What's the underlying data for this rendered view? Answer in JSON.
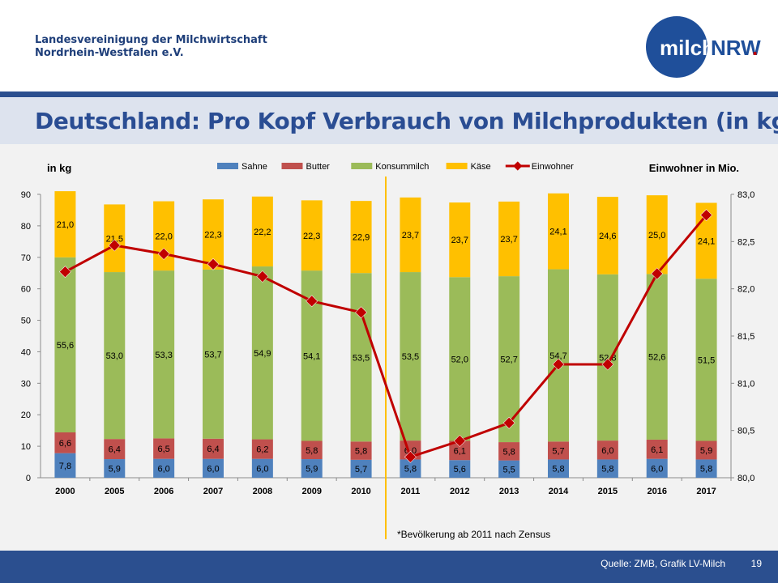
{
  "header": {
    "org_line1": "Landesvereinigung der Milchwirtschaft",
    "org_line2": "Nordrhein-Westfalen e.V.",
    "logo_left": "milch",
    "logo_right": "NRW",
    "logo_dot": "."
  },
  "slide": {
    "title": "Deutschland: Pro Kopf Verbrauch von Milchprodukten (in kg)",
    "footnote": "*Bevölkerung ab 2011 nach Zensus",
    "source": "Quelle: ZMB, Grafik LV-Milch",
    "page_number": "19"
  },
  "colors": {
    "sahne": "#4f81bd",
    "butter": "#c0504d",
    "konsummilch": "#9bbb59",
    "kaese": "#ffc000",
    "einwohner": "#c00000",
    "divider": "#ffc000",
    "brand": "#2b4f8f"
  },
  "chart_data": {
    "type": "bar",
    "stacked": true,
    "ylabel": "in kg",
    "y2label": "Einwohner in Mio.",
    "ylim": [
      0,
      90
    ],
    "y2lim": [
      80.0,
      83.0
    ],
    "yticks": [
      "0",
      "10",
      "20",
      "30",
      "40",
      "50",
      "60",
      "70",
      "80",
      "90"
    ],
    "y2ticks": [
      "80,0",
      "80,5",
      "81,0",
      "81,5",
      "82,0",
      "82,5",
      "83,0"
    ],
    "categories": [
      "2000",
      "2005",
      "2006",
      "2007",
      "2008",
      "2009",
      "2010",
      "2011",
      "2012",
      "2013",
      "2014",
      "2015",
      "2016",
      "2017"
    ],
    "series": [
      {
        "name": "Sahne",
        "values": [
          7.8,
          5.9,
          6.0,
          6.0,
          6.0,
          5.9,
          5.7,
          5.8,
          5.6,
          5.5,
          5.8,
          5.8,
          6.0,
          5.8
        ],
        "labels": [
          "7,8",
          "5,9",
          "6,0",
          "6,0",
          "6,0",
          "5,9",
          "5,7",
          "5,8",
          "5,6",
          "5,5",
          "5,8",
          "5,8",
          "6,0",
          "5,8"
        ]
      },
      {
        "name": "Butter",
        "values": [
          6.6,
          6.4,
          6.5,
          6.4,
          6.2,
          5.8,
          5.8,
          6.0,
          6.1,
          5.8,
          5.7,
          6.0,
          6.1,
          5.9
        ],
        "labels": [
          "6,6",
          "6,4",
          "6,5",
          "6,4",
          "6,2",
          "5,8",
          "5,8",
          "6,0",
          "6,1",
          "5,8",
          "5,7",
          "6,0",
          "6,1",
          "5,9"
        ]
      },
      {
        "name": "Konsummilch",
        "values": [
          55.6,
          53.0,
          53.3,
          53.7,
          54.9,
          54.1,
          53.5,
          53.5,
          52.0,
          52.7,
          54.7,
          52.8,
          52.6,
          51.5
        ],
        "labels": [
          "55,6",
          "53,0",
          "53,3",
          "53,7",
          "54,9",
          "54,1",
          "53,5",
          "53,5",
          "52,0",
          "52,7",
          "54,7",
          "52,8",
          "52,6",
          "51,5"
        ]
      },
      {
        "name": "Käse",
        "values": [
          21.0,
          21.5,
          22.0,
          22.3,
          22.2,
          22.3,
          22.9,
          23.7,
          23.7,
          23.7,
          24.1,
          24.6,
          25.0,
          24.1
        ],
        "labels": [
          "21,0",
          "21,5",
          "22,0",
          "22,3",
          "22,2",
          "22,3",
          "22,9",
          "23,7",
          "23,7",
          "23,7",
          "24,1",
          "24,6",
          "25,0",
          "24,1"
        ]
      }
    ],
    "line_series": {
      "name": "Einwohner",
      "axis": "right",
      "values": [
        82.18,
        82.46,
        82.37,
        82.26,
        82.13,
        81.87,
        81.75,
        80.22,
        80.39,
        80.58,
        81.2,
        81.2,
        82.16,
        82.78
      ]
    },
    "legend_position": "top",
    "grid": false
  }
}
